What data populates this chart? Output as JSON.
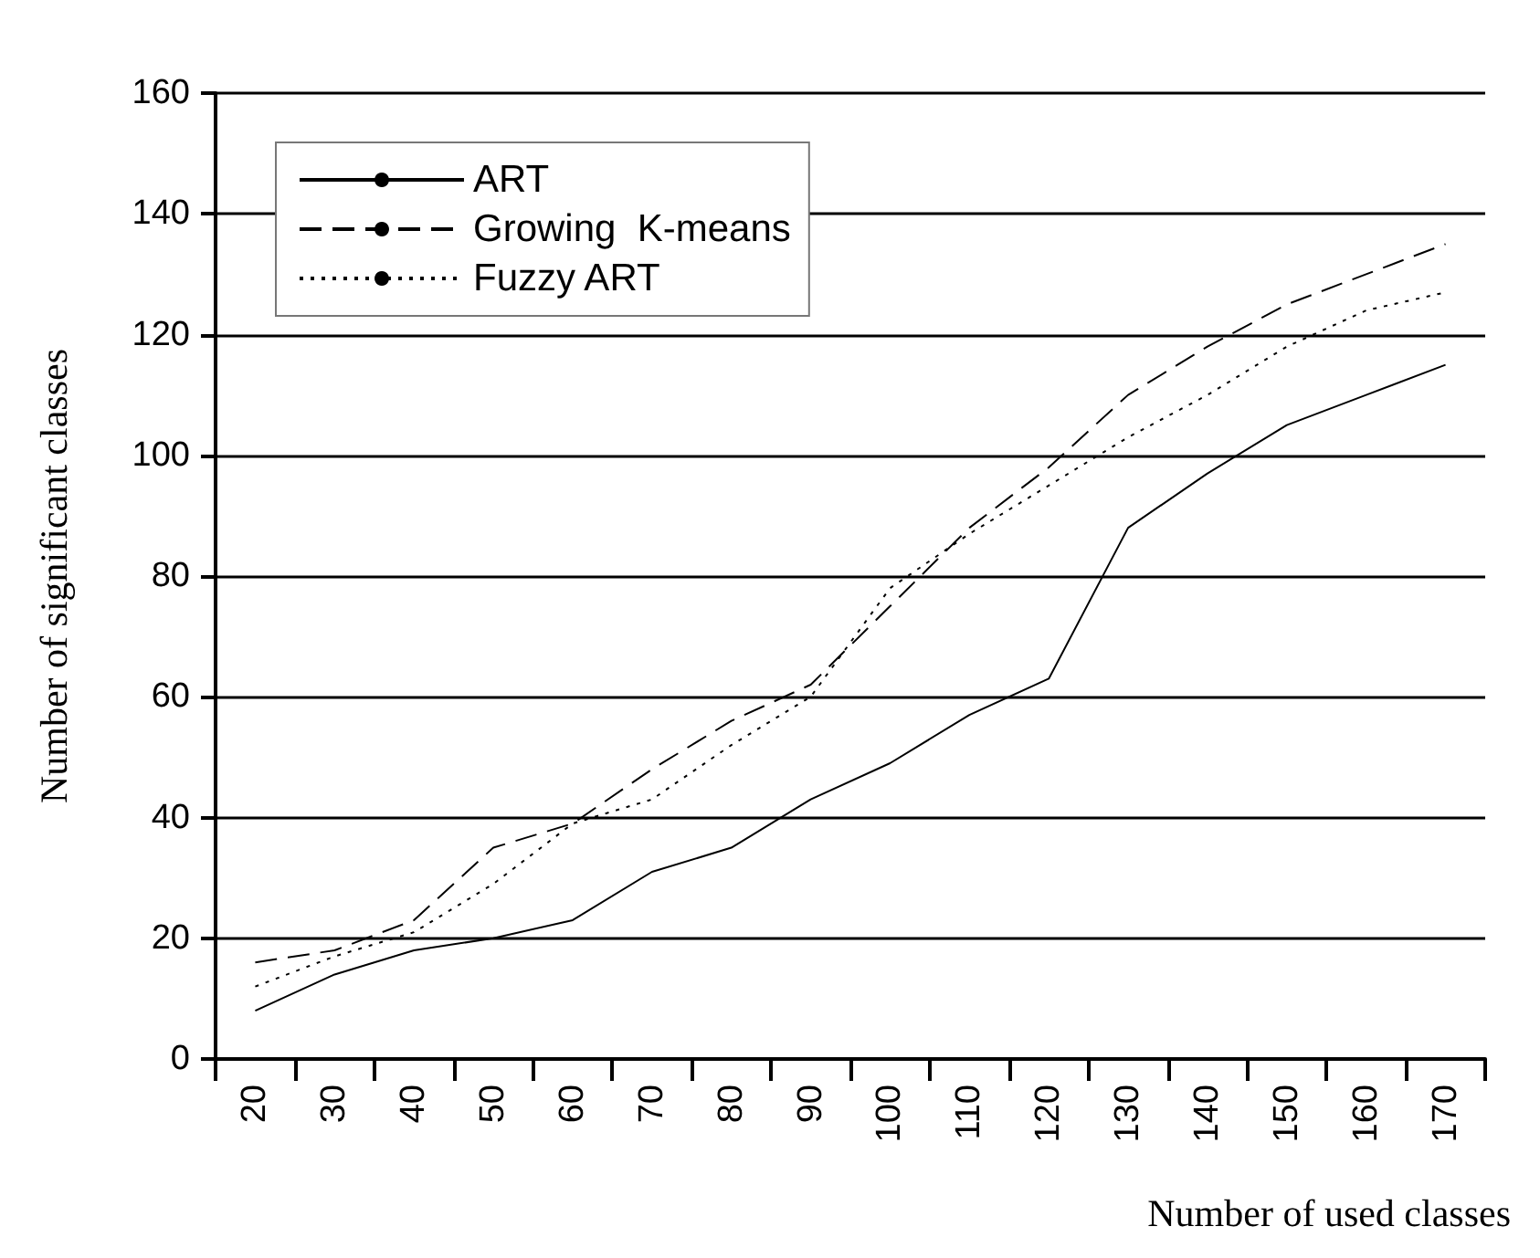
{
  "chart_data": {
    "type": "line",
    "xlabel": "Number of used classes",
    "ylabel": "Number of significant classes",
    "categories": [
      "20",
      "30",
      "40",
      "50",
      "60",
      "70",
      "80",
      "90",
      "100",
      "110",
      "120",
      "130",
      "140",
      "150",
      "160",
      "170"
    ],
    "series": [
      {
        "name": "ART",
        "color": "#000000",
        "line_style": "solid",
        "values": [
          8,
          14,
          18,
          20,
          23,
          31,
          35,
          43,
          49,
          57,
          63,
          88,
          97,
          105,
          110,
          115
        ]
      },
      {
        "name": "Growing  K-means",
        "color": "#000000",
        "line_style": "dashed",
        "values": [
          16,
          18,
          23,
          35,
          39,
          48,
          56,
          62,
          75,
          88,
          98,
          110,
          118,
          125,
          130,
          135
        ]
      },
      {
        "name": "Fuzzy ART",
        "color": "#000000",
        "line_style": "dotted",
        "values": [
          12,
          17,
          21,
          29,
          39,
          43,
          52,
          60,
          78,
          87,
          95,
          103,
          110,
          118,
          124,
          127
        ]
      }
    ],
    "ylim": [
      0,
      160
    ],
    "yticks": [
      0,
      20,
      40,
      60,
      80,
      100,
      120,
      140,
      160
    ],
    "grid": "y",
    "legend": "top left",
    "marker": "none"
  }
}
